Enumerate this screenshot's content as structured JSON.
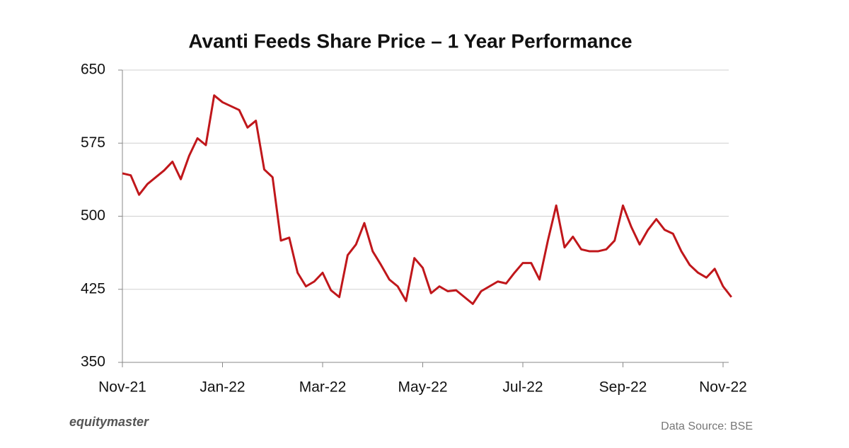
{
  "chart_data": {
    "type": "line",
    "title": "Avanti Feeds Share Price – 1 Year Performance",
    "logo": "equitymaster",
    "source": "Data Source: BSE",
    "categories": [
      "Nov-21",
      null,
      null,
      null,
      null,
      null,
      null,
      null,
      null,
      null,
      null,
      null,
      "Jan-22",
      null,
      null,
      null,
      null,
      null,
      null,
      null,
      null,
      null,
      null,
      null,
      "Mar-22",
      null,
      null,
      null,
      null,
      null,
      null,
      null,
      null,
      null,
      null,
      null,
      "May-22",
      null,
      null,
      null,
      null,
      null,
      null,
      null,
      null,
      null,
      null,
      null,
      "Jul-22",
      null,
      null,
      null,
      null,
      null,
      null,
      null,
      null,
      null,
      null,
      null,
      "Sep-22",
      null,
      null,
      null,
      null,
      null,
      null,
      null,
      null,
      null,
      null,
      null,
      "Nov-22",
      null
    ],
    "values": [
      544,
      542,
      522,
      533,
      540,
      547,
      556,
      538,
      562,
      580,
      573,
      624,
      617,
      613,
      609,
      591,
      598,
      548,
      540,
      475,
      478,
      442,
      428,
      433,
      442,
      424,
      417,
      460,
      471,
      493,
      464,
      450,
      435,
      428,
      413,
      457,
      447,
      421,
      428,
      423,
      424,
      417,
      410,
      423,
      428,
      433,
      431,
      442,
      452,
      452,
      435,
      475,
      511,
      468,
      479,
      466,
      464,
      464,
      466,
      475,
      511,
      489,
      471,
      486,
      497,
      486,
      482,
      464,
      450,
      442,
      437,
      446,
      428,
      417
    ],
    "color": "#c0171b",
    "ylim": [
      350,
      650
    ],
    "yticks": [
      350,
      425,
      500,
      575,
      650
    ],
    "grid": true
  }
}
